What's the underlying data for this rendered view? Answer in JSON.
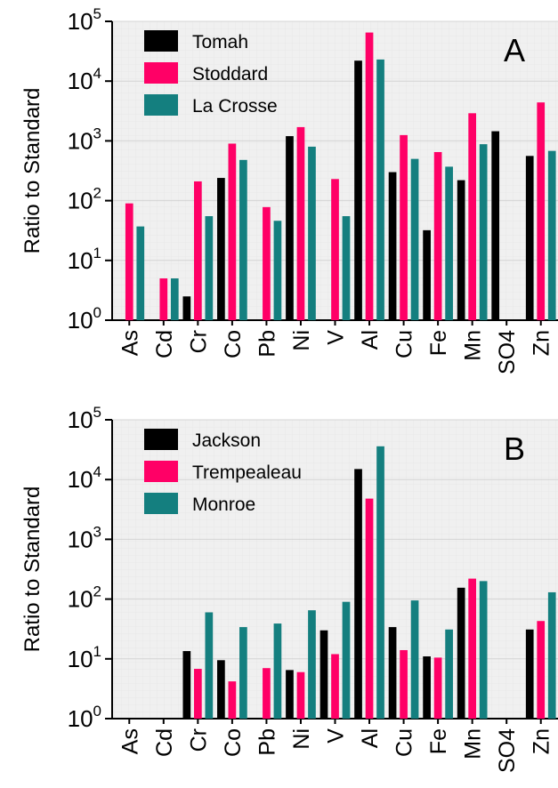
{
  "chart_data": [
    {
      "type": "bar",
      "panel_label": "A",
      "ylabel": "Ratio to Standard",
      "yscale": "log",
      "ylim": [
        1,
        100000
      ],
      "y_ticks": [
        {
          "base": "10",
          "exp": "0"
        },
        {
          "base": "10",
          "exp": "1"
        },
        {
          "base": "10",
          "exp": "2"
        },
        {
          "base": "10",
          "exp": "3"
        },
        {
          "base": "10",
          "exp": "4"
        },
        {
          "base": "10",
          "exp": "5"
        }
      ],
      "categories": [
        "As",
        "Cd",
        "Cr",
        "Co",
        "Pb",
        "Ni",
        "V",
        "Al",
        "Cu",
        "Fe",
        "Mn",
        "SO4",
        "Zn"
      ],
      "grid": true,
      "legend_position": "top-left",
      "series": [
        {
          "name": "Tomah",
          "color": "#000000",
          "values": [
            null,
            null,
            2.5,
            240,
            null,
            1200,
            null,
            22000,
            300,
            32,
            220,
            1450,
            560
          ]
        },
        {
          "name": "Stoddard",
          "color": "#ff0066",
          "values": [
            90,
            5,
            210,
            900,
            78,
            1700,
            230,
            65000,
            1250,
            650,
            2900,
            null,
            4400
          ]
        },
        {
          "name": "La Crosse",
          "color": "#147f7f",
          "values": [
            37,
            5,
            55,
            480,
            46,
            800,
            55,
            23000,
            500,
            370,
            880,
            null,
            680
          ]
        }
      ]
    },
    {
      "type": "bar",
      "panel_label": "B",
      "ylabel": "Ratio to Standard",
      "yscale": "log",
      "ylim": [
        1,
        100000
      ],
      "y_ticks": [
        {
          "base": "10",
          "exp": "0"
        },
        {
          "base": "10",
          "exp": "1"
        },
        {
          "base": "10",
          "exp": "2"
        },
        {
          "base": "10",
          "exp": "3"
        },
        {
          "base": "10",
          "exp": "4"
        },
        {
          "base": "10",
          "exp": "5"
        }
      ],
      "categories": [
        "As",
        "Cd",
        "Cr",
        "Co",
        "Pb",
        "Ni",
        "V",
        "Al",
        "Cu",
        "Fe",
        "Mn",
        "SO4",
        "Zn"
      ],
      "grid": true,
      "legend_position": "top-left",
      "series": [
        {
          "name": "Jackson",
          "color": "#000000",
          "values": [
            null,
            null,
            13.5,
            9.5,
            null,
            6.5,
            30,
            15000,
            34,
            11,
            155,
            null,
            31
          ]
        },
        {
          "name": "Trempealeau",
          "color": "#ff0066",
          "values": [
            null,
            null,
            6.8,
            4.2,
            7,
            6,
            12,
            4800,
            14,
            10.5,
            220,
            null,
            43
          ]
        },
        {
          "name": "Monroe",
          "color": "#147f7f",
          "values": [
            null,
            null,
            60,
            34,
            39,
            65,
            90,
            36000,
            95,
            31,
            200,
            null,
            130
          ]
        }
      ]
    }
  ]
}
